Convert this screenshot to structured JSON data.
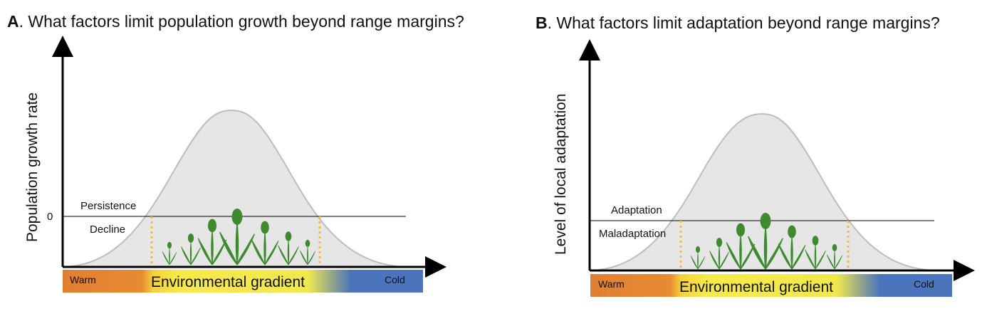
{
  "panelA": {
    "letter": "A",
    "title": ". What factors limit population growth beyond range margins?",
    "ylabel": "Population growth rate",
    "zero_tick": "0",
    "above_label": "Persistence",
    "below_label": "Decline",
    "gradient_label": "Environmental gradient",
    "warm_label": "Warm",
    "cold_label": "Cold"
  },
  "panelB": {
    "letter": "B",
    "title": ". What factors limit adaptation beyond range margins?",
    "ylabel": "Level of local adaptation",
    "above_label": "Adaptation",
    "below_label": "Maladaptation",
    "gradient_label": "Environmental gradient",
    "warm_label": "Warm",
    "cold_label": "Cold"
  },
  "colors": {
    "warm": "#e07f33",
    "mid": "#f7e94a",
    "cold": "#4a74bb",
    "curve_fill": "#e6e6e6",
    "threshold": "#f5b942",
    "plants": "#3d8a2f"
  }
}
